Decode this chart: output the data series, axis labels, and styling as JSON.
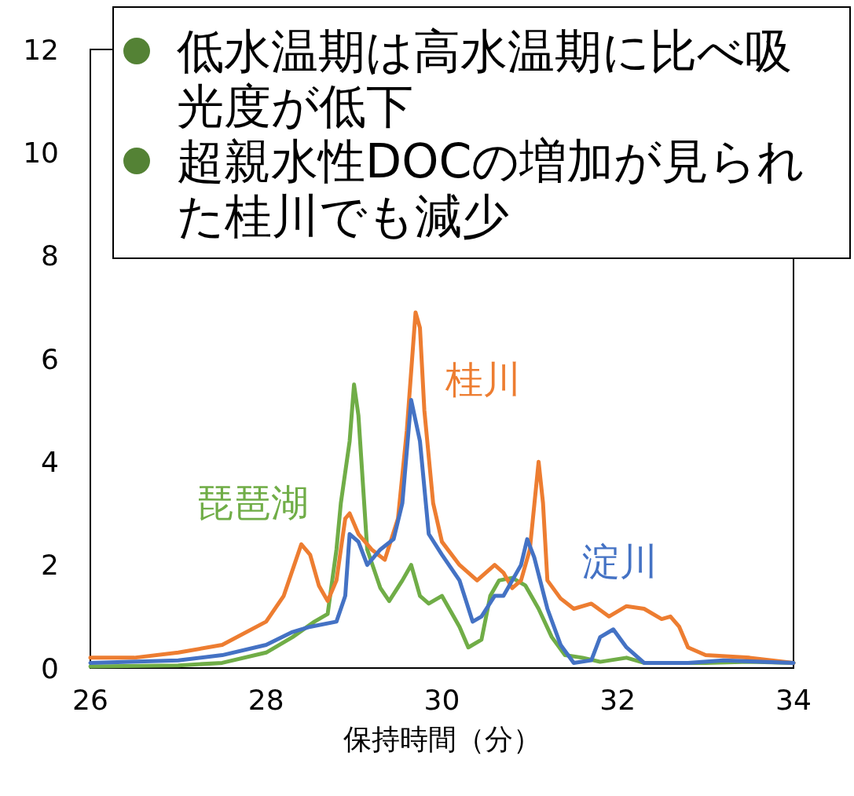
{
  "chart_data": {
    "type": "line",
    "xlabel": "保持時間（分）",
    "xlim": [
      26,
      34
    ],
    "xticks": [
      26,
      28,
      30,
      32,
      34
    ],
    "ylim": [
      0,
      12
    ],
    "yticks": [
      0,
      2,
      4,
      6,
      8,
      10,
      12
    ],
    "grid": false,
    "marker": "none",
    "line_style": "solid",
    "annotations": [
      "低水温期は高水温期に比べ吸光度が低下",
      "超親水性DOCの増加が見られた桂川でも減少"
    ],
    "series": [
      {
        "name": "琵琶湖",
        "color": "#70ad47",
        "x": [
          26,
          27,
          27.5,
          28,
          28.3,
          28.55,
          28.7,
          28.8,
          28.85,
          28.95,
          29.0,
          29.05,
          29.15,
          29.3,
          29.4,
          29.55,
          29.65,
          29.75,
          29.85,
          30.0,
          30.1,
          30.2,
          30.3,
          30.45,
          30.55,
          30.65,
          30.8,
          30.95,
          31.1,
          31.25,
          31.4,
          31.6,
          31.8,
          32.1,
          32.3,
          33.0,
          33.5,
          34
        ],
        "values": [
          0.03,
          0.05,
          0.1,
          0.3,
          0.6,
          0.9,
          1.05,
          2.3,
          3.2,
          4.4,
          5.5,
          4.9,
          2.3,
          1.55,
          1.3,
          1.7,
          2.0,
          1.4,
          1.25,
          1.4,
          1.1,
          0.8,
          0.4,
          0.55,
          1.4,
          1.7,
          1.75,
          1.6,
          1.15,
          0.6,
          0.25,
          0.2,
          0.12,
          0.2,
          0.1,
          0.1,
          0.12,
          0.1
        ]
      },
      {
        "name": "桂川",
        "color": "#ed7d31",
        "x": [
          26,
          26.5,
          27,
          27.5,
          28,
          28.2,
          28.4,
          28.5,
          28.6,
          28.7,
          28.8,
          28.9,
          28.95,
          29.05,
          29.2,
          29.35,
          29.5,
          29.6,
          29.7,
          29.75,
          29.8,
          29.9,
          30.0,
          30.2,
          30.4,
          30.6,
          30.7,
          30.8,
          30.9,
          31.0,
          31.1,
          31.15,
          31.2,
          31.35,
          31.5,
          31.7,
          31.9,
          32.1,
          32.3,
          32.5,
          32.6,
          32.7,
          32.8,
          33.0,
          33.5,
          34
        ],
        "values": [
          0.2,
          0.2,
          0.3,
          0.45,
          0.9,
          1.4,
          2.4,
          2.2,
          1.6,
          1.3,
          1.7,
          2.9,
          3.0,
          2.6,
          2.3,
          2.1,
          2.9,
          4.6,
          6.9,
          6.6,
          5.0,
          3.2,
          2.45,
          2.0,
          1.7,
          2.0,
          1.85,
          1.55,
          1.7,
          2.3,
          4.0,
          3.2,
          1.7,
          1.35,
          1.15,
          1.25,
          1.0,
          1.2,
          1.15,
          0.95,
          1.0,
          0.8,
          0.4,
          0.25,
          0.2,
          0.1
        ]
      },
      {
        "name": "淀川",
        "color": "#4472c4",
        "x": [
          26,
          27,
          27.5,
          28,
          28.3,
          28.5,
          28.8,
          28.9,
          28.95,
          29.05,
          29.15,
          29.3,
          29.45,
          29.55,
          29.65,
          29.75,
          29.85,
          30.0,
          30.2,
          30.35,
          30.45,
          30.6,
          30.7,
          30.8,
          30.9,
          30.97,
          31.05,
          31.2,
          31.35,
          31.5,
          31.7,
          31.8,
          31.95,
          32.1,
          32.3,
          32.8,
          33.2,
          34
        ],
        "values": [
          0.1,
          0.15,
          0.25,
          0.45,
          0.7,
          0.8,
          0.9,
          1.4,
          2.6,
          2.45,
          2.0,
          2.3,
          2.5,
          3.2,
          5.2,
          4.4,
          2.6,
          2.2,
          1.7,
          0.9,
          1.0,
          1.4,
          1.4,
          1.7,
          2.0,
          2.5,
          2.15,
          1.15,
          0.45,
          0.1,
          0.15,
          0.6,
          0.75,
          0.4,
          0.1,
          0.1,
          0.15,
          0.1
        ]
      }
    ]
  }
}
